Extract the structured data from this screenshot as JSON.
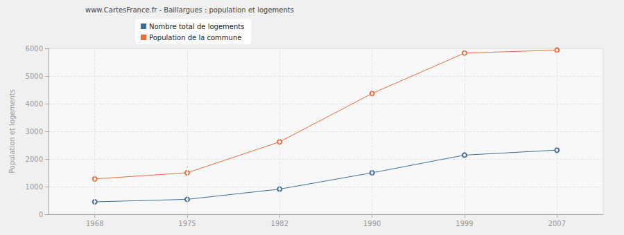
{
  "chart_data": {
    "type": "line",
    "title": "www.CartesFrance.fr - Baillargues : population et logements",
    "y_label": "Population et logements",
    "categories": [
      "1968",
      "1975",
      "1982",
      "1990",
      "1999",
      "2007"
    ],
    "series": [
      {
        "name": "Nombre total de logements",
        "color": "#3f6e9a",
        "marker": "circle",
        "values": [
          450,
          540,
          910,
          1500,
          2140,
          2320
        ]
      },
      {
        "name": "Population de la commune",
        "color": "#e96c3b",
        "marker": "circle",
        "values": [
          1280,
          1500,
          2620,
          4370,
          5830,
          5940
        ]
      }
    ],
    "ylim": [
      0,
      6000
    ],
    "yticks": [
      0,
      1000,
      2000,
      3000,
      4000,
      5000,
      6000
    ],
    "grid": true,
    "legend": "top"
  }
}
